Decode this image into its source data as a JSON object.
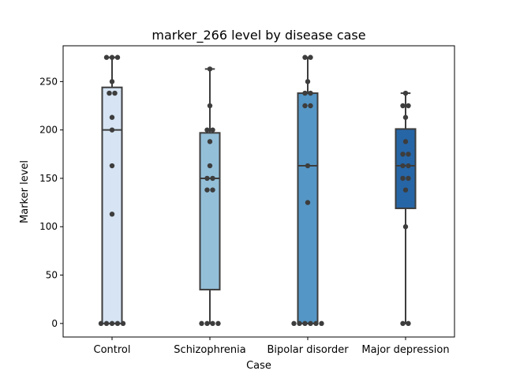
{
  "chart_data": {
    "type": "box",
    "title": "marker_266 level by disease case",
    "xlabel": "Case",
    "ylabel": "Marker level",
    "ylim": [
      -14,
      287
    ],
    "yticks": [
      0,
      50,
      100,
      150,
      200,
      250
    ],
    "categories": [
      "Control",
      "Schizophrenia",
      "Bipolar disorder",
      "Major depression"
    ],
    "box_colors": [
      "#d6e4f3",
      "#94bfd9",
      "#5496c6",
      "#2666a7"
    ],
    "boxes": [
      {
        "category": "Control",
        "whisker_low": 0,
        "q1": 0,
        "median": 200,
        "q3": 244,
        "whisker_high": 275
      },
      {
        "category": "Schizophrenia",
        "whisker_low": 0,
        "q1": 35,
        "median": 150,
        "q3": 197,
        "whisker_high": 263
      },
      {
        "category": "Bipolar disorder",
        "whisker_low": 0,
        "q1": 0,
        "median": 163,
        "q3": 238,
        "whisker_high": 275
      },
      {
        "category": "Major depression",
        "whisker_low": 0,
        "q1": 119,
        "median": 163,
        "q3": 201,
        "whisker_high": 238
      }
    ],
    "points": [
      {
        "category": "Control",
        "values": [
          275,
          275,
          275,
          250,
          238,
          238,
          213,
          200,
          163,
          113,
          0,
          0,
          0,
          0,
          0
        ]
      },
      {
        "category": "Schizophrenia",
        "values": [
          263,
          225,
          200,
          200,
          188,
          163,
          150,
          150,
          138,
          138,
          0,
          0,
          0,
          0
        ]
      },
      {
        "category": "Bipolar disorder",
        "values": [
          275,
          275,
          250,
          238,
          238,
          225,
          225,
          163,
          125,
          0,
          0,
          0,
          0,
          0,
          0
        ]
      },
      {
        "category": "Major depression",
        "values": [
          238,
          225,
          225,
          213,
          188,
          175,
          175,
          163,
          163,
          150,
          150,
          138,
          100,
          0,
          0
        ]
      }
    ],
    "colors": {
      "point": "#3d3d3d",
      "line": "#3d3d3d",
      "axis": "#000000"
    }
  }
}
